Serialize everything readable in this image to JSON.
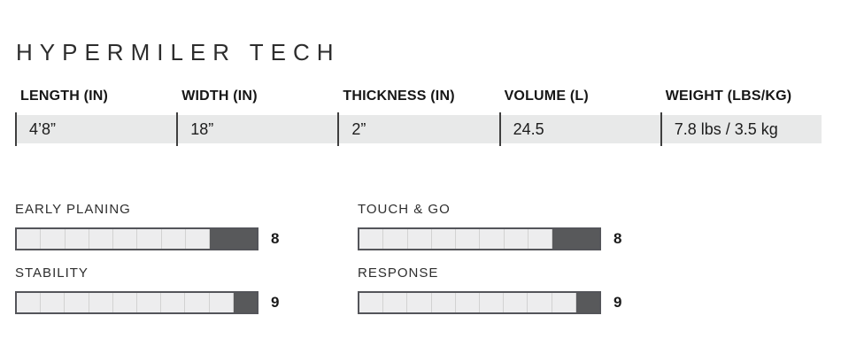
{
  "title": "HYPERMILER TECH",
  "spec_table": {
    "columns": [
      {
        "label": "LENGTH (IN)",
        "value": "4’8”"
      },
      {
        "label": "WIDTH (IN)",
        "value": "18”"
      },
      {
        "label": "THICKNESS (IN)",
        "value": "2”"
      },
      {
        "label": "VOLUME (L)",
        "value": "24.5"
      },
      {
        "label": "WEIGHT (LBS/KG)",
        "value": "7.8 lbs / 3.5 kg"
      }
    ]
  },
  "ratings": {
    "max": 10,
    "items": [
      {
        "label": "EARLY PLANING",
        "value": 8
      },
      {
        "label": "TOUCH & GO",
        "value": 8
      },
      {
        "label": "STABILITY",
        "value": 9
      },
      {
        "label": "RESPONSE",
        "value": 9
      }
    ]
  },
  "chart_data": [
    {
      "type": "table",
      "title": "HYPERMILER TECH",
      "columns": [
        "LENGTH (IN)",
        "WIDTH (IN)",
        "THICKNESS (IN)",
        "VOLUME (L)",
        "WEIGHT (LBS/KG)"
      ],
      "rows": [
        [
          "4’8”",
          "18”",
          "2”",
          "24.5",
          "7.8 lbs / 3.5 kg"
        ]
      ]
    },
    {
      "type": "bar",
      "orientation": "horizontal",
      "categories": [
        "EARLY PLANING",
        "TOUCH & GO",
        "STABILITY",
        "RESPONSE"
      ],
      "values": [
        8,
        8,
        9,
        9
      ],
      "xlim": [
        0,
        10
      ],
      "segments_per_bar": 10,
      "legend": "none",
      "grid": "segment-ticks",
      "data_labels": "right of bar"
    }
  ],
  "colors": {
    "text": "#2d2d2d",
    "band_bg": "#e8e9e9",
    "divider": "#3f3f3f",
    "bar_light": "#ededee",
    "bar_dark": "#58595b",
    "bar_border": "#54555a",
    "seg_line": "#d2d2d2"
  }
}
